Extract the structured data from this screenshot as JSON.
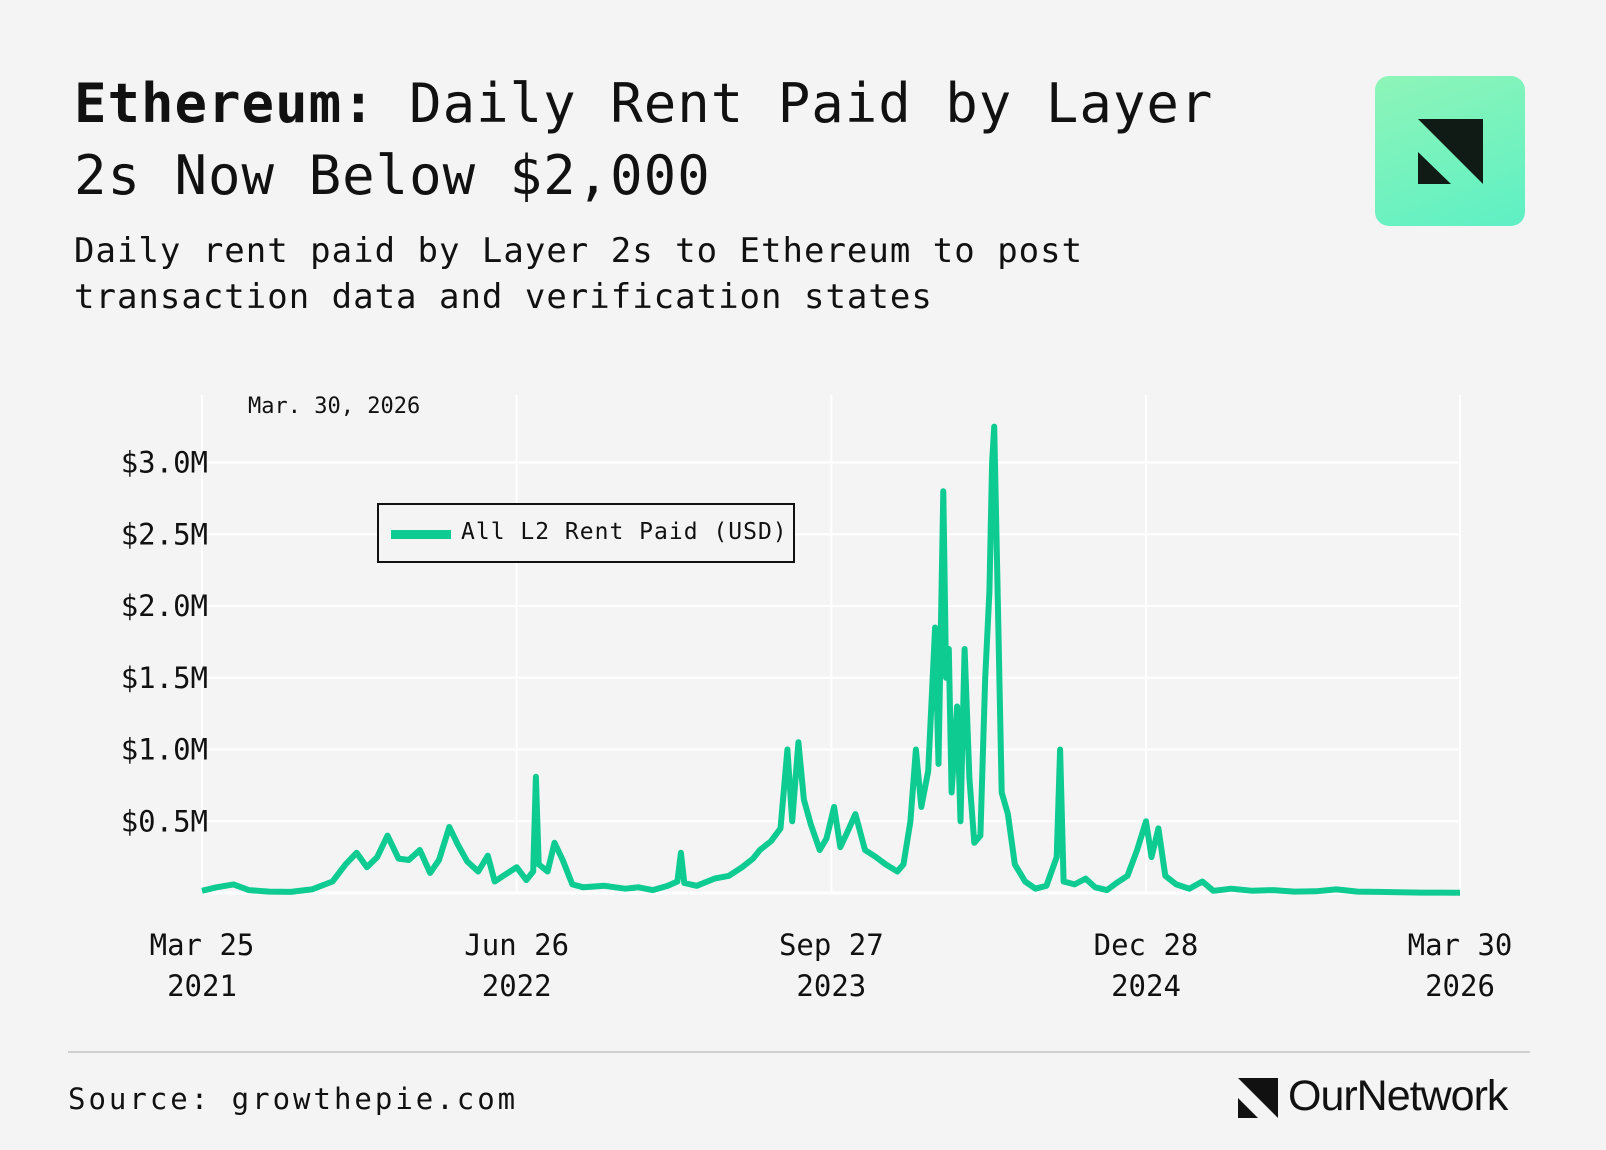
{
  "header": {
    "title_bold": "Ethereum:",
    "title_rest": "Daily Rent Paid by Layer 2s Now Below $2,000",
    "subtitle": "Daily rent paid by Layer 2s to Ethereum to post transaction data and verification states"
  },
  "brand": {
    "name": "OurNetwork",
    "logo_icon": "ournetwork-logo-icon",
    "accent": "#0ecb91",
    "tile_gradient": [
      "#8ef5b8",
      "#5ef0c4"
    ]
  },
  "footer": {
    "source": "Source: growthepie.com"
  },
  "chart_data": {
    "type": "line",
    "title": "",
    "xlabel": "",
    "ylabel": "",
    "date_label": "Mar. 30, 2026",
    "x_range": [
      "2021-03-25",
      "2026-03-30"
    ],
    "ylim": [
      0,
      3300000
    ],
    "y_ticks": [
      {
        "value": 500000,
        "label": "$0.5M"
      },
      {
        "value": 1000000,
        "label": "$1.0M"
      },
      {
        "value": 1500000,
        "label": "$1.5M"
      },
      {
        "value": 2000000,
        "label": "$2.0M"
      },
      {
        "value": 2500000,
        "label": "$2.5M"
      },
      {
        "value": 3000000,
        "label": "$3.0M"
      }
    ],
    "x_ticks": [
      {
        "date": "2021-03-25",
        "line1": "Mar 25",
        "line2": "2021"
      },
      {
        "date": "2022-06-26",
        "line1": "Jun 26",
        "line2": "2022"
      },
      {
        "date": "2023-09-27",
        "line1": "Sep 27",
        "line2": "2023"
      },
      {
        "date": "2024-12-28",
        "line1": "Dec 28",
        "line2": "2024"
      },
      {
        "date": "2026-03-30",
        "line1": "Mar 30",
        "line2": "2026"
      }
    ],
    "grid": true,
    "legend": "top-left",
    "series": [
      {
        "name": "All L2 Rent Paid (USD)",
        "color": "#0ecb91",
        "points": [
          [
            "2021-03-25",
            15000
          ],
          [
            "2021-04-15",
            40000
          ],
          [
            "2021-05-10",
            60000
          ],
          [
            "2021-06-01",
            20000
          ],
          [
            "2021-07-01",
            10000
          ],
          [
            "2021-08-01",
            8000
          ],
          [
            "2021-09-01",
            25000
          ],
          [
            "2021-10-01",
            80000
          ],
          [
            "2021-10-20",
            200000
          ],
          [
            "2021-11-05",
            280000
          ],
          [
            "2021-11-20",
            180000
          ],
          [
            "2021-12-05",
            250000
          ],
          [
            "2021-12-20",
            400000
          ],
          [
            "2022-01-05",
            240000
          ],
          [
            "2022-01-20",
            230000
          ],
          [
            "2022-02-05",
            300000
          ],
          [
            "2022-02-20",
            140000
          ],
          [
            "2022-03-05",
            230000
          ],
          [
            "2022-03-20",
            460000
          ],
          [
            "2022-04-01",
            340000
          ],
          [
            "2022-04-15",
            220000
          ],
          [
            "2022-05-01",
            150000
          ],
          [
            "2022-05-15",
            260000
          ],
          [
            "2022-05-25",
            80000
          ],
          [
            "2022-06-10",
            130000
          ],
          [
            "2022-06-26",
            180000
          ],
          [
            "2022-07-10",
            90000
          ],
          [
            "2022-07-20",
            150000
          ],
          [
            "2022-07-24",
            810000
          ],
          [
            "2022-07-28",
            200000
          ],
          [
            "2022-08-10",
            150000
          ],
          [
            "2022-08-20",
            350000
          ],
          [
            "2022-09-01",
            230000
          ],
          [
            "2022-09-15",
            60000
          ],
          [
            "2022-10-01",
            40000
          ],
          [
            "2022-11-01",
            50000
          ],
          [
            "2022-12-01",
            30000
          ],
          [
            "2022-12-20",
            40000
          ],
          [
            "2023-01-10",
            20000
          ],
          [
            "2023-02-01",
            50000
          ],
          [
            "2023-02-15",
            80000
          ],
          [
            "2023-02-20",
            280000
          ],
          [
            "2023-02-25",
            70000
          ],
          [
            "2023-03-15",
            50000
          ],
          [
            "2023-04-10",
            100000
          ],
          [
            "2023-05-01",
            120000
          ],
          [
            "2023-05-20",
            180000
          ],
          [
            "2023-06-05",
            240000
          ],
          [
            "2023-06-15",
            300000
          ],
          [
            "2023-07-01",
            360000
          ],
          [
            "2023-07-15",
            450000
          ],
          [
            "2023-07-25",
            1000000
          ],
          [
            "2023-08-01",
            500000
          ],
          [
            "2023-08-10",
            1050000
          ],
          [
            "2023-08-18",
            650000
          ],
          [
            "2023-08-28",
            480000
          ],
          [
            "2023-09-10",
            300000
          ],
          [
            "2023-09-20",
            380000
          ],
          [
            "2023-10-01",
            600000
          ],
          [
            "2023-10-10",
            320000
          ],
          [
            "2023-10-20",
            420000
          ],
          [
            "2023-11-01",
            550000
          ],
          [
            "2023-11-15",
            300000
          ],
          [
            "2023-12-01",
            250000
          ],
          [
            "2023-12-15",
            200000
          ],
          [
            "2024-01-01",
            150000
          ],
          [
            "2024-01-10",
            200000
          ],
          [
            "2024-01-20",
            500000
          ],
          [
            "2024-01-28",
            1000000
          ],
          [
            "2024-02-05",
            600000
          ],
          [
            "2024-02-15",
            850000
          ],
          [
            "2024-02-25",
            1850000
          ],
          [
            "2024-03-01",
            900000
          ],
          [
            "2024-03-08",
            2800000
          ],
          [
            "2024-03-12",
            1500000
          ],
          [
            "2024-03-16",
            1700000
          ],
          [
            "2024-03-20",
            700000
          ],
          [
            "2024-03-28",
            1300000
          ],
          [
            "2024-04-02",
            500000
          ],
          [
            "2024-04-08",
            1700000
          ],
          [
            "2024-04-15",
            800000
          ],
          [
            "2024-04-22",
            350000
          ],
          [
            "2024-05-01",
            400000
          ],
          [
            "2024-05-08",
            1500000
          ],
          [
            "2024-05-14",
            2100000
          ],
          [
            "2024-05-18",
            3000000
          ],
          [
            "2024-05-21",
            3250000
          ],
          [
            "2024-05-25",
            2350000
          ],
          [
            "2024-06-01",
            700000
          ],
          [
            "2024-06-10",
            550000
          ],
          [
            "2024-06-20",
            200000
          ],
          [
            "2024-07-05",
            80000
          ],
          [
            "2024-07-20",
            30000
          ],
          [
            "2024-08-05",
            50000
          ],
          [
            "2024-08-20",
            250000
          ],
          [
            "2024-08-25",
            1000000
          ],
          [
            "2024-08-30",
            80000
          ],
          [
            "2024-09-15",
            60000
          ],
          [
            "2024-10-01",
            100000
          ],
          [
            "2024-10-15",
            40000
          ],
          [
            "2024-11-01",
            20000
          ],
          [
            "2024-11-15",
            70000
          ],
          [
            "2024-12-01",
            120000
          ],
          [
            "2024-12-15",
            300000
          ],
          [
            "2024-12-28",
            500000
          ],
          [
            "2025-01-05",
            250000
          ],
          [
            "2025-01-15",
            450000
          ],
          [
            "2025-01-25",
            120000
          ],
          [
            "2025-02-10",
            60000
          ],
          [
            "2025-03-01",
            30000
          ],
          [
            "2025-03-20",
            80000
          ],
          [
            "2025-04-05",
            15000
          ],
          [
            "2025-05-01",
            30000
          ],
          [
            "2025-06-01",
            15000
          ],
          [
            "2025-07-01",
            20000
          ],
          [
            "2025-08-01",
            10000
          ],
          [
            "2025-09-01",
            12000
          ],
          [
            "2025-10-01",
            25000
          ],
          [
            "2025-11-01",
            10000
          ],
          [
            "2025-12-01",
            8000
          ],
          [
            "2026-01-01",
            5000
          ],
          [
            "2026-02-01",
            3000
          ],
          [
            "2026-03-01",
            2500
          ],
          [
            "2026-03-30",
            1900
          ]
        ]
      }
    ]
  }
}
